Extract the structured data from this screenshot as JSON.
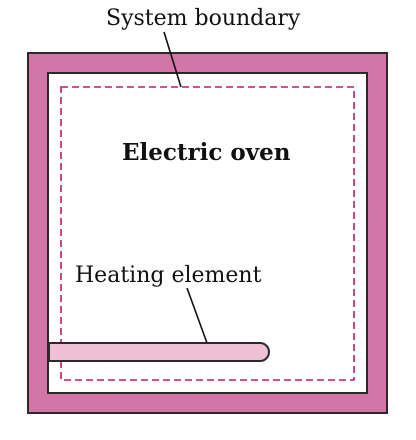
{
  "diagram": {
    "labels": {
      "system_boundary": "System boundary",
      "oven": "Electric oven",
      "heating_element": "Heating element"
    },
    "colors": {
      "oven_wall": "#d475a8",
      "wall_outline": "#2a2a2a",
      "interior": "#ffffff",
      "boundary_dash": "#c2186b",
      "element_fill": "#efbfd8",
      "element_stroke": "#2a2a2a",
      "leader_line": "#111111"
    }
  }
}
